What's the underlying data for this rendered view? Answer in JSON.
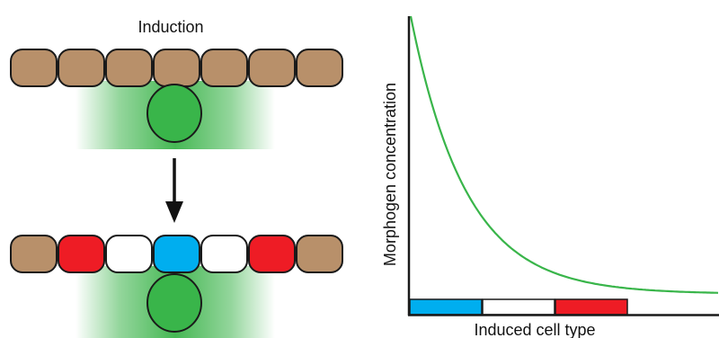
{
  "diagram": {
    "title": "Induction",
    "y_axis_label": "Morphogen concentration",
    "x_axis_label": "Induced cell type"
  },
  "colors": {
    "tan_cell": "#b8906a",
    "red_cell": "#ee1c25",
    "blue_cell": "#00aeef",
    "white_cell": "#ffffff",
    "inducer_green": "#39b54a",
    "gradient_green": "#3cb44b",
    "curve_green": "#39b54a",
    "outline": "#1a1a1a"
  },
  "rows": {
    "before": [
      "tan",
      "tan",
      "tan",
      "tan",
      "tan",
      "tan",
      "tan"
    ],
    "after": [
      "tan",
      "red",
      "white",
      "blue",
      "white",
      "red",
      "tan"
    ]
  },
  "x_axis_bands": [
    "blue",
    "white",
    "red"
  ],
  "icons": {
    "transition": "down-arrow-icon",
    "signal_source": "inducer-cell-icon"
  }
}
